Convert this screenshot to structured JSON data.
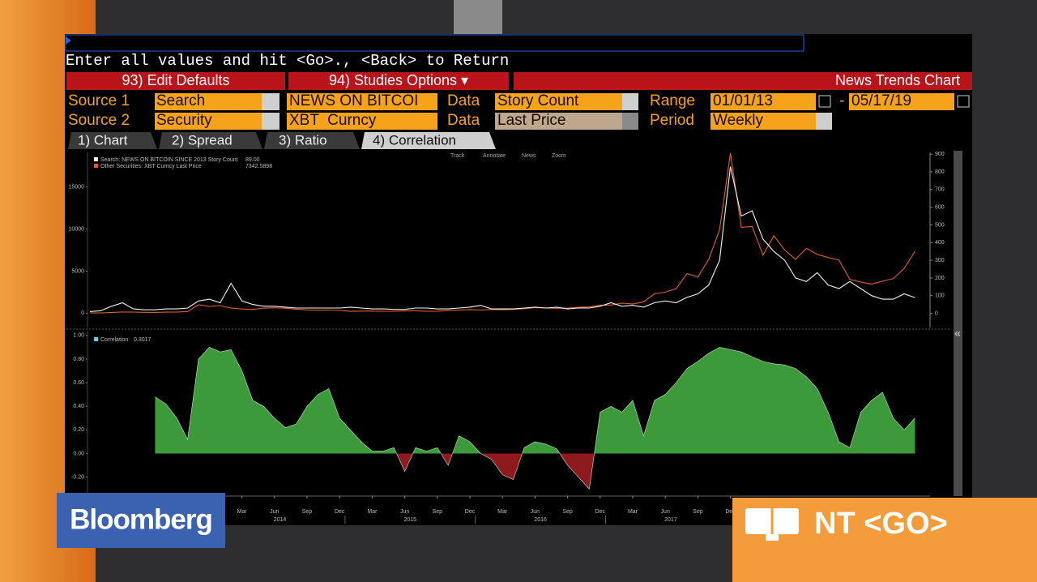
{
  "command_line": "Enter all values and hit <Go>., <Back> to Return",
  "buttons": [
    "93) Edit Defaults",
    "94) Studies Options ▾",
    "News Trends Chart"
  ],
  "form": {
    "source1_label": "Source 1",
    "source1_type": "Search",
    "source1_value": "NEWS ON BITCOI",
    "data1_label": "Data",
    "data1_value": "Story Count",
    "range_label": "Range",
    "range_start": "01/01/13",
    "range_sep": "-",
    "range_end": "05/17/19",
    "source2_label": "Source 2",
    "source2_type": "Security",
    "source2_value": "XBT  Curncy",
    "data2_label": "Data",
    "data2_value": "Last Price",
    "period_label": "Period",
    "period_value": "Weekly"
  },
  "tabs": [
    "1) Chart",
    "2) Spread",
    "3) Ratio",
    "4) Correlation"
  ],
  "toolbar": [
    "Track",
    "Annotate",
    "News",
    "Zoom"
  ],
  "overlay": {
    "logo": "Bloomberg",
    "function": "NT <GO>"
  },
  "chart_data": [
    {
      "type": "line",
      "x": [
        "2013-01",
        "2013-02",
        "2013-03",
        "2013-04",
        "2013-05",
        "2013-06",
        "2013-07",
        "2013-08",
        "2013-09",
        "2013-10",
        "2013-11",
        "2013-12",
        "2014-01",
        "2014-02",
        "2014-03",
        "2014-04",
        "2014-05",
        "2014-06",
        "2014-07",
        "2014-08",
        "2014-09",
        "2014-10",
        "2014-11",
        "2014-12",
        "2015-01",
        "2015-02",
        "2015-03",
        "2015-04",
        "2015-05",
        "2015-06",
        "2015-07",
        "2015-08",
        "2015-09",
        "2015-10",
        "2015-11",
        "2015-12",
        "2016-01",
        "2016-02",
        "2016-03",
        "2016-04",
        "2016-05",
        "2016-06",
        "2016-07",
        "2016-08",
        "2016-09",
        "2016-10",
        "2016-11",
        "2016-12",
        "2017-01",
        "2017-02",
        "2017-03",
        "2017-04",
        "2017-05",
        "2017-06",
        "2017-07",
        "2017-08",
        "2017-09",
        "2017-10",
        "2017-11",
        "2017-12",
        "2018-01",
        "2018-02",
        "2018-03",
        "2018-04",
        "2018-05",
        "2018-06",
        "2018-07",
        "2018-08",
        "2018-09",
        "2018-10",
        "2018-11",
        "2018-12",
        "2019-01",
        "2019-02",
        "2019-03",
        "2019-04",
        "2019-05"
      ],
      "series": [
        {
          "name": "Other Securities: XBT  Curncy Last Price",
          "legend_value": "7342.5898",
          "color": "#e0622a",
          "values": [
            20,
            33,
            90,
            140,
            130,
            100,
            90,
            120,
            130,
            200,
            1000,
            800,
            900,
            600,
            500,
            450,
            600,
            640,
            590,
            480,
            390,
            340,
            370,
            320,
            220,
            250,
            250,
            230,
            230,
            260,
            280,
            230,
            240,
            310,
            380,
            430,
            370,
            440,
            410,
            450,
            530,
            670,
            620,
            570,
            610,
            700,
            740,
            960,
            970,
            1190,
            1080,
            1350,
            2300,
            2500,
            2900,
            4700,
            4300,
            6400,
            9900,
            19000,
            10200,
            10300,
            6900,
            9200,
            7500,
            6400,
            7700,
            7000,
            6600,
            6300,
            4000,
            3700,
            3450,
            3800,
            4100,
            5300,
            7342.5898
          ]
        },
        {
          "name": "Search: NEWS ON BITCOIN SINCE 2013 Story Count",
          "legend_value": "89.00",
          "color": "#f2f2f2",
          "axis": "y2",
          "values": [
            10,
            15,
            40,
            60,
            25,
            20,
            20,
            25,
            25,
            30,
            70,
            80,
            60,
            170,
            70,
            50,
            40,
            40,
            35,
            30,
            30,
            30,
            30,
            30,
            35,
            30,
            25,
            25,
            22,
            22,
            30,
            30,
            25,
            25,
            30,
            35,
            45,
            25,
            25,
            25,
            30,
            35,
            30,
            35,
            25,
            30,
            30,
            40,
            60,
            40,
            45,
            35,
            60,
            70,
            60,
            90,
            110,
            160,
            300,
            830,
            550,
            580,
            420,
            350,
            300,
            200,
            180,
            230,
            160,
            140,
            180,
            140,
            100,
            80,
            80,
            110,
            89
          ]
        }
      ],
      "ylim": [
        -1700,
        19100
      ],
      "yticks": [
        0,
        5000,
        10000,
        15000
      ],
      "y2lim": [
        -80,
        910
      ],
      "y2ticks": [
        0,
        100,
        200,
        300,
        400,
        500,
        600,
        700,
        800,
        900
      ]
    },
    {
      "type": "area",
      "x": [
        "2013-01",
        "2013-02",
        "2013-03",
        "2013-04",
        "2013-05",
        "2013-06",
        "2013-07",
        "2013-08",
        "2013-09",
        "2013-10",
        "2013-11",
        "2013-12",
        "2014-01",
        "2014-02",
        "2014-03",
        "2014-04",
        "2014-05",
        "2014-06",
        "2014-07",
        "2014-08",
        "2014-09",
        "2014-10",
        "2014-11",
        "2014-12",
        "2015-01",
        "2015-02",
        "2015-03",
        "2015-04",
        "2015-05",
        "2015-06",
        "2015-07",
        "2015-08",
        "2015-09",
        "2015-10",
        "2015-11",
        "2015-12",
        "2016-01",
        "2016-02",
        "2016-03",
        "2016-04",
        "2016-05",
        "2016-06",
        "2016-07",
        "2016-08",
        "2016-09",
        "2016-10",
        "2016-11",
        "2016-12",
        "2017-01",
        "2017-02",
        "2017-03",
        "2017-04",
        "2017-05",
        "2017-06",
        "2017-07",
        "2017-08",
        "2017-09",
        "2017-10",
        "2017-11",
        "2017-12",
        "2018-01",
        "2018-02",
        "2018-03",
        "2018-04",
        "2018-05",
        "2018-06",
        "2018-07",
        "2018-08",
        "2018-09",
        "2018-10",
        "2018-11",
        "2018-12",
        "2019-01",
        "2019-02",
        "2019-03",
        "2019-04",
        "2019-05"
      ],
      "series": [
        {
          "name": "Correlation",
          "legend_value": "0.3017",
          "color": "#3d9a3a",
          "negative_color": "#8e1a1e",
          "values": [
            null,
            null,
            null,
            null,
            null,
            null,
            0.48,
            0.42,
            0.3,
            0.12,
            0.8,
            0.9,
            0.86,
            0.88,
            0.7,
            0.45,
            0.4,
            0.3,
            0.22,
            0.25,
            0.4,
            0.5,
            0.55,
            0.3,
            0.2,
            0.1,
            0.02,
            0.02,
            0.05,
            -0.15,
            0.05,
            0.02,
            0.05,
            -0.1,
            0.15,
            0.1,
            0.0,
            -0.05,
            -0.18,
            -0.22,
            0.05,
            0.1,
            0.08,
            0.04,
            -0.1,
            -0.2,
            -0.3,
            0.35,
            0.4,
            0.35,
            0.45,
            0.15,
            0.45,
            0.5,
            0.6,
            0.72,
            0.78,
            0.85,
            0.9,
            0.88,
            0.86,
            0.82,
            0.78,
            0.76,
            0.75,
            0.72,
            0.65,
            0.55,
            0.35,
            0.1,
            0.05,
            0.35,
            0.45,
            0.52,
            0.3,
            0.2,
            0.3017
          ]
        }
      ],
      "ylim": [
        -0.36,
        1.04
      ],
      "yticks": [
        {
          "value": 1,
          "label": "1.00"
        },
        {
          "value": 0.8,
          "label": "0.80"
        },
        {
          "value": 0.6,
          "label": "0.60"
        },
        {
          "value": 0.4,
          "label": "0.40"
        },
        {
          "value": 0.2,
          "label": "0.20"
        },
        {
          "value": 0,
          "label": "0.00"
        },
        {
          "value": -0.2,
          "label": "-0.20"
        }
      ],
      "xticks": [
        {
          "value": "2014-03",
          "label": "Mar"
        },
        {
          "value": "2014-06",
          "label": "Jun"
        },
        {
          "value": "2014-09",
          "label": "Sep"
        },
        {
          "value": "2014-12",
          "label": "Dec"
        },
        {
          "value": "2015-03",
          "label": "Mar"
        },
        {
          "value": "2015-06",
          "label": "Jun"
        },
        {
          "value": "2015-09",
          "label": "Sep"
        },
        {
          "value": "2015-12",
          "label": "Dec"
        },
        {
          "value": "2016-03",
          "label": "Mar"
        },
        {
          "value": "2016-06",
          "label": "Jun"
        },
        {
          "value": "2016-09",
          "label": "Sep"
        },
        {
          "value": "2016-12",
          "label": "Dec"
        },
        {
          "value": "2017-03",
          "label": "Mar"
        },
        {
          "value": "2017-06",
          "label": "Jun"
        },
        {
          "value": "2017-09",
          "label": "Sep"
        },
        {
          "value": "2017-12",
          "label": "Dec"
        }
      ],
      "years": [
        "2014",
        "2015",
        "2016",
        "2017"
      ]
    }
  ]
}
